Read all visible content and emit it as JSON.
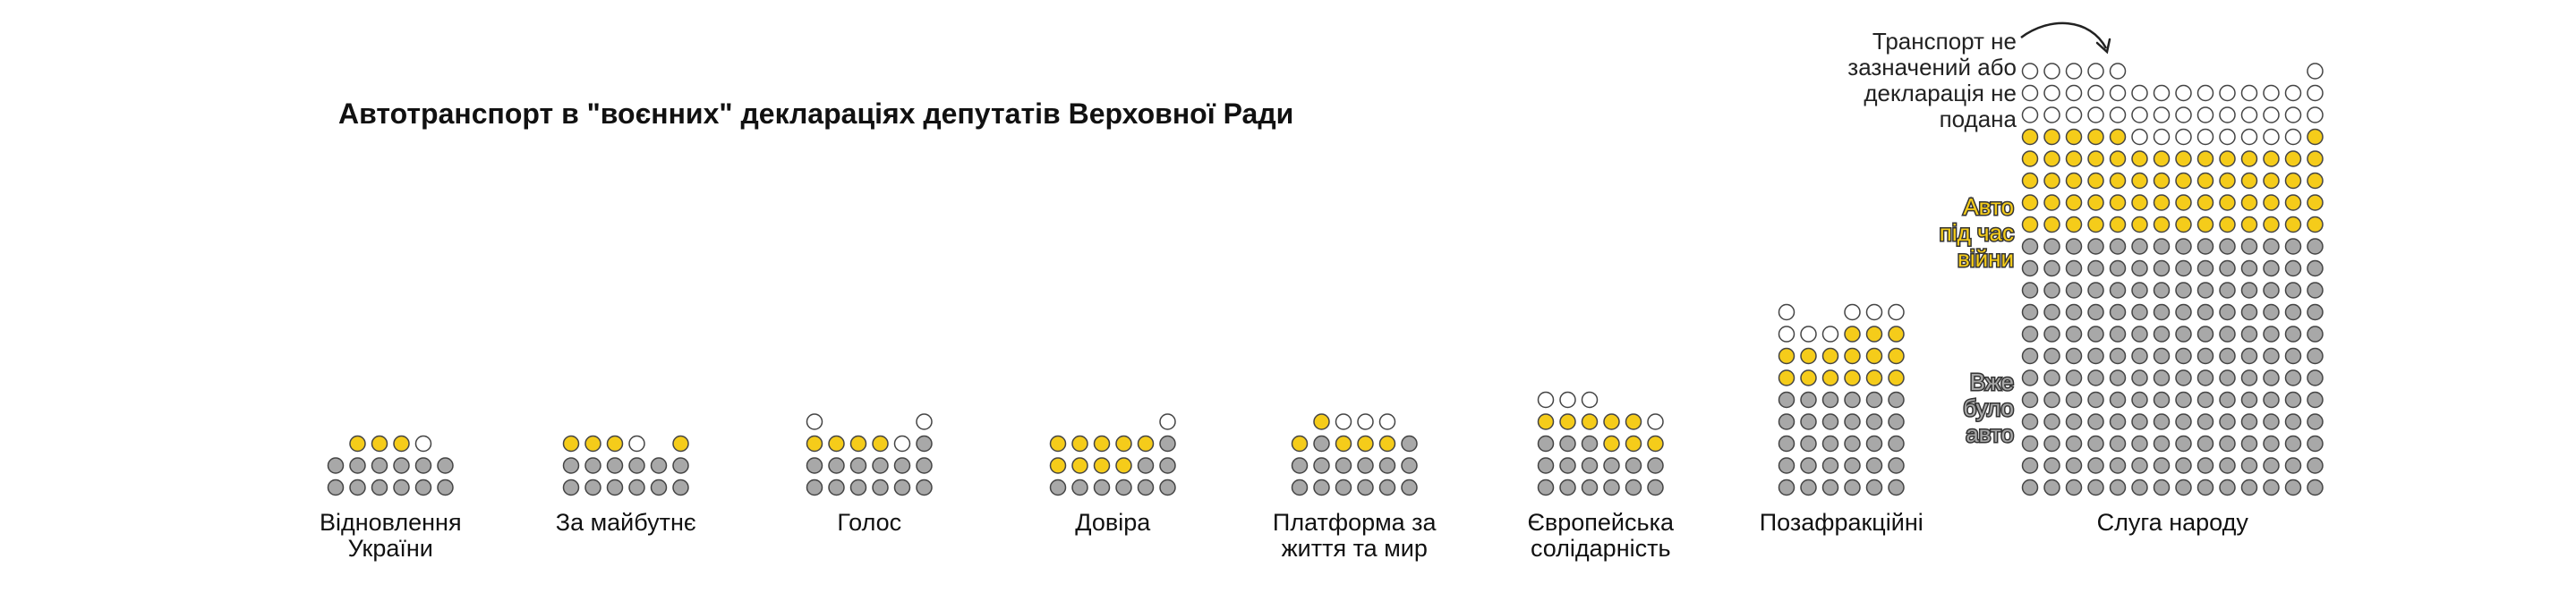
{
  "chart_data": {
    "type": "waffle",
    "title": "Автотранспорт в \"воєнних\" деклараціях депутатів Верховної Ради",
    "colors": {
      "already_had": "#a8a8a8",
      "wartime": "#f5cc1a",
      "none": "#ffffff",
      "stroke": "#444444"
    },
    "annotations": {
      "none_label": [
        "Транспорт не",
        "зазначений або",
        "декларація не",
        "подана"
      ],
      "wartime_label": [
        "Авто",
        "під час",
        "війни"
      ],
      "already_label": [
        "Вже",
        "було",
        "авто"
      ]
    },
    "groups": [
      {
        "name": "Відновлення України",
        "label_lines": [
          "Відновлення",
          "України"
        ],
        "rows": [
          "-YYYN-",
          "GGGGGG",
          "GGGGGG"
        ]
      },
      {
        "name": "За майбутнє",
        "label_lines": [
          "За майбутнє"
        ],
        "rows": [
          "YYYN-Y",
          "GGGGGG",
          "GGGGGG"
        ]
      },
      {
        "name": "Голос",
        "label_lines": [
          "Голос"
        ],
        "rows": [
          "N----N",
          "YYYYNG",
          "GGGGGG",
          "GGGGGG"
        ]
      },
      {
        "name": "Довіра",
        "label_lines": [
          "Довіра"
        ],
        "rows": [
          "-----N",
          "YYYYYG",
          "YYYYGG",
          "GGGGGG"
        ]
      },
      {
        "name": "Платформа за життя та мир",
        "label_lines": [
          "Платформа за",
          "життя та мир"
        ],
        "rows": [
          "-YNNN-",
          "YGYYYG",
          "GGGGGG",
          "GGGGGG"
        ]
      },
      {
        "name": "Європейська солідарність",
        "label_lines": [
          "Європейська",
          "солідарність"
        ],
        "rows": [
          "NNN---",
          "YYYYYN",
          "GGGYYY",
          "GGGGGG",
          "GGGGGG"
        ]
      },
      {
        "name": "Позафракційні",
        "label_lines": [
          "Позафракційні"
        ],
        "rows": [
          "N--NNN",
          "NNNYYY",
          "YYYYYY",
          "YYYYYY",
          "GGGGGG",
          "GGGGGG",
          "GGGGGG",
          "GGGGGG",
          "GGGGGG"
        ]
      },
      {
        "name": "Слуга народу",
        "label_lines": [
          "Слуга народу"
        ],
        "rows": [
          "NNNNN--------N",
          "NNNNNNNNNNNNNN",
          "NNNNNNNNNNNNNN",
          "YYYYYNNNNNNNNY",
          "YYYYYYYYYYYYYY",
          "YYYYYYYYYYYYYY",
          "YYYYYYYYYYYYYY",
          "YYYYYYYYYYYYYY",
          "GGGGGGGGGGGGGG",
          "GGGGGGGGGGGGGG",
          "GGGGGGGGGGGGGG",
          "GGGGGGGGGGGGGG",
          "GGGGGGGGGGGGGG",
          "GGGGGGGGGGGGGG",
          "GGGGGGGGGGGGGG",
          "GGGGGGGGGGGGGG",
          "GGGGGGGGGGGGGG",
          "GGGGGGGGGGGGGG",
          "GGGGGGGGGGGGGG",
          "GGGGGGGGGGGGGG"
        ]
      }
    ]
  }
}
